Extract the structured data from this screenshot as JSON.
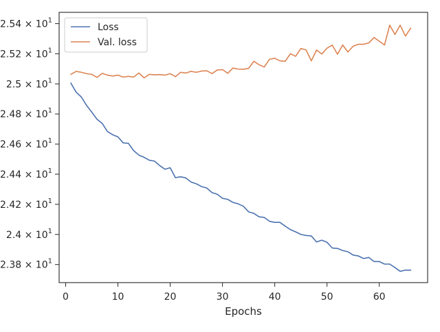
{
  "chart_data": {
    "type": "line",
    "xlabel": "Epochs",
    "ylabel": "",
    "xlim": [
      -1.25,
      69.25
    ],
    "ylim": [
      23.68,
      25.475
    ],
    "xticks": [
      0,
      10,
      20,
      30,
      40,
      50,
      60
    ],
    "yticks": [
      23.8,
      24.0,
      24.2,
      24.4,
      24.6,
      24.8,
      25.0,
      25.2,
      25.4
    ],
    "ytick_labels": [
      "2.38",
      "2.4",
      "2.42",
      "2.44",
      "2.46",
      "2.48",
      "2.5",
      "2.52",
      "2.54"
    ],
    "ytick_exponent": "1",
    "legend_position": "upper-left",
    "series": [
      {
        "name": "Loss",
        "color": "#4c72b0",
        "x": [
          1,
          2,
          3,
          4,
          5,
          6,
          7,
          8,
          9,
          10,
          11,
          12,
          13,
          14,
          15,
          16,
          17,
          18,
          19,
          20,
          21,
          22,
          23,
          24,
          25,
          26,
          27,
          28,
          29,
          30,
          31,
          32,
          33,
          34,
          35,
          36,
          37,
          38,
          39,
          40,
          41,
          42,
          43,
          44,
          45,
          46,
          47,
          48,
          49,
          50,
          51,
          52,
          53,
          54,
          55,
          56,
          57,
          58,
          59,
          60,
          61,
          62,
          63,
          64,
          65,
          66
        ],
        "y": [
          25.005,
          24.945,
          24.913,
          24.857,
          24.812,
          24.765,
          24.737,
          24.683,
          24.662,
          24.648,
          24.608,
          24.605,
          24.557,
          24.527,
          24.512,
          24.493,
          24.487,
          24.457,
          24.433,
          24.443,
          24.377,
          24.383,
          24.375,
          24.348,
          24.336,
          24.318,
          24.308,
          24.278,
          24.267,
          24.24,
          24.233,
          24.213,
          24.203,
          24.187,
          24.15,
          24.14,
          24.117,
          24.113,
          24.087,
          24.08,
          24.08,
          24.055,
          24.032,
          24.017,
          24.0,
          23.993,
          23.99,
          23.95,
          23.962,
          23.948,
          23.91,
          23.907,
          23.893,
          23.885,
          23.863,
          23.857,
          23.84,
          23.847,
          23.82,
          23.82,
          23.803,
          23.803,
          23.78,
          23.755,
          23.763,
          23.763
        ]
      },
      {
        "name": "Val. loss",
        "color": "#dd8452",
        "x": [
          1,
          2,
          3,
          4,
          5,
          6,
          7,
          8,
          9,
          10,
          11,
          12,
          13,
          14,
          15,
          16,
          17,
          18,
          19,
          20,
          21,
          22,
          23,
          24,
          25,
          26,
          27,
          28,
          29,
          30,
          31,
          32,
          33,
          34,
          35,
          36,
          37,
          38,
          39,
          40,
          41,
          42,
          43,
          44,
          45,
          46,
          47,
          48,
          49,
          50,
          51,
          52,
          53,
          54,
          55,
          56,
          57,
          58,
          59,
          60,
          61,
          62,
          63,
          64,
          65,
          66
        ],
        "y": [
          25.063,
          25.083,
          25.077,
          25.068,
          25.063,
          25.043,
          25.07,
          25.058,
          25.052,
          25.058,
          25.045,
          25.05,
          25.045,
          25.072,
          25.04,
          25.063,
          25.06,
          25.062,
          25.058,
          25.068,
          25.048,
          25.077,
          25.072,
          25.083,
          25.077,
          25.085,
          25.087,
          25.068,
          25.092,
          25.095,
          25.07,
          25.105,
          25.098,
          25.097,
          25.103,
          25.15,
          25.127,
          25.112,
          25.163,
          25.17,
          25.153,
          25.15,
          25.2,
          25.183,
          25.235,
          25.225,
          25.153,
          25.225,
          25.198,
          25.237,
          25.257,
          25.197,
          25.258,
          25.212,
          25.25,
          25.263,
          25.263,
          25.272,
          25.308,
          25.283,
          25.258,
          25.39,
          25.328,
          25.39,
          25.317,
          25.37
        ]
      }
    ]
  }
}
